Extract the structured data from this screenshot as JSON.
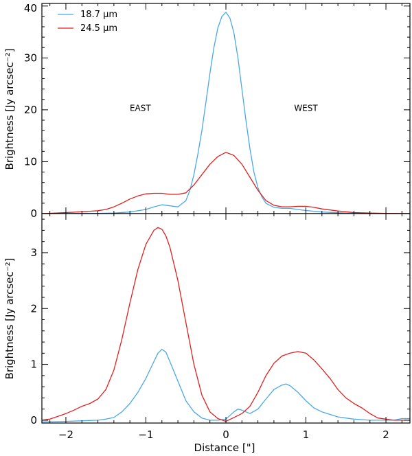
{
  "chart_data": [
    {
      "type": "line",
      "panel": "top",
      "title": "",
      "xlabel": "",
      "ylabel": "Brightness [Jy arcsec⁻²]",
      "xlim": [
        -2.3,
        2.3
      ],
      "ylim": [
        0,
        40.5
      ],
      "xticks": [
        -2,
        -1,
        0,
        1,
        2
      ],
      "yticks": [
        0,
        10,
        20,
        30,
        40
      ],
      "ytick_labels": [
        "0",
        "10",
        "20",
        "30",
        "40"
      ],
      "grid": false,
      "legend_position": "top-left",
      "annotations": [
        {
          "text": "EAST",
          "x": -1.07,
          "y": 19.8
        },
        {
          "text": "WEST",
          "x": 1.0,
          "y": 19.8
        }
      ],
      "series": [
        {
          "name": "18.7 μm",
          "color": "#4aa8e8",
          "x": [
            -2.3,
            -2.0,
            -1.6,
            -1.4,
            -1.2,
            -1.0,
            -0.9,
            -0.8,
            -0.7,
            -0.6,
            -0.5,
            -0.45,
            -0.4,
            -0.35,
            -0.3,
            -0.25,
            -0.2,
            -0.15,
            -0.1,
            -0.05,
            0.0,
            0.05,
            0.1,
            0.15,
            0.2,
            0.25,
            0.3,
            0.35,
            0.4,
            0.45,
            0.5,
            0.6,
            0.7,
            0.8,
            0.9,
            1.0,
            1.2,
            1.5,
            1.8,
            2.0,
            2.3
          ],
          "y": [
            0.0,
            0.02,
            0.05,
            0.1,
            0.3,
            0.8,
            1.3,
            1.7,
            1.5,
            1.3,
            2.5,
            4.5,
            7.5,
            11.5,
            16.0,
            21.5,
            27.0,
            32.0,
            35.8,
            38.0,
            38.8,
            37.7,
            34.8,
            30.0,
            24.0,
            18.0,
            12.5,
            8.0,
            5.0,
            3.2,
            2.0,
            1.2,
            1.0,
            1.0,
            0.8,
            0.6,
            0.3,
            0.1,
            0.05,
            0.02,
            0.0
          ]
        },
        {
          "name": "24.5 μm",
          "color": "#e02020",
          "x": [
            -2.3,
            -2.0,
            -1.8,
            -1.6,
            -1.5,
            -1.4,
            -1.3,
            -1.2,
            -1.1,
            -1.0,
            -0.9,
            -0.8,
            -0.7,
            -0.6,
            -0.5,
            -0.4,
            -0.3,
            -0.2,
            -0.1,
            0.0,
            0.1,
            0.2,
            0.3,
            0.4,
            0.5,
            0.6,
            0.7,
            0.8,
            0.9,
            1.0,
            1.1,
            1.2,
            1.4,
            1.6,
            1.8,
            2.0,
            2.3
          ],
          "y": [
            0.0,
            0.2,
            0.35,
            0.55,
            0.8,
            1.3,
            2.0,
            2.8,
            3.4,
            3.8,
            3.9,
            3.9,
            3.7,
            3.7,
            4.0,
            5.5,
            7.5,
            9.5,
            11.0,
            11.8,
            11.2,
            9.5,
            7.0,
            4.5,
            2.5,
            1.6,
            1.3,
            1.3,
            1.4,
            1.4,
            1.2,
            0.9,
            0.5,
            0.2,
            0.1,
            0.05,
            0.0
          ]
        }
      ]
    },
    {
      "type": "line",
      "panel": "bottom",
      "title": "",
      "xlabel": "Distance [\"]",
      "ylabel": "Brightness [Jy arcsec⁻²]",
      "xlim": [
        -2.3,
        2.3
      ],
      "ylim": [
        -0.05,
        3.7
      ],
      "xticks": [
        -2,
        -1,
        0,
        1,
        2
      ],
      "xtick_labels": [
        "−2",
        "−1",
        "0",
        "1",
        "2"
      ],
      "yticks": [
        0,
        1,
        2,
        3
      ],
      "ytick_labels": [
        "0",
        "1",
        "2",
        "3"
      ],
      "grid": false,
      "series": [
        {
          "name": "18.7 μm",
          "color": "#4aa8e8",
          "x": [
            -2.3,
            -2.0,
            -1.8,
            -1.6,
            -1.5,
            -1.4,
            -1.3,
            -1.2,
            -1.1,
            -1.0,
            -0.9,
            -0.85,
            -0.8,
            -0.75,
            -0.7,
            -0.6,
            -0.5,
            -0.4,
            -0.3,
            -0.2,
            -0.1,
            0.0,
            0.1,
            0.15,
            0.2,
            0.3,
            0.4,
            0.5,
            0.6,
            0.7,
            0.75,
            0.8,
            0.9,
            1.0,
            1.1,
            1.2,
            1.4,
            1.6,
            1.8,
            2.0,
            2.1,
            2.2,
            2.3
          ],
          "y": [
            -0.03,
            -0.02,
            -0.01,
            0.0,
            0.02,
            0.05,
            0.15,
            0.3,
            0.5,
            0.75,
            1.05,
            1.2,
            1.27,
            1.22,
            1.05,
            0.7,
            0.35,
            0.15,
            0.04,
            0.0,
            0.0,
            0.02,
            0.15,
            0.2,
            0.18,
            0.12,
            0.2,
            0.38,
            0.55,
            0.63,
            0.65,
            0.62,
            0.5,
            0.35,
            0.22,
            0.15,
            0.06,
            0.02,
            0.0,
            0.0,
            0.0,
            0.03,
            0.03
          ]
        },
        {
          "name": "24.5 μm",
          "color": "#e02020",
          "x": [
            -2.3,
            -2.2,
            -2.0,
            -1.9,
            -1.8,
            -1.7,
            -1.6,
            -1.5,
            -1.4,
            -1.3,
            -1.2,
            -1.1,
            -1.0,
            -0.9,
            -0.85,
            -0.8,
            -0.75,
            -0.7,
            -0.6,
            -0.5,
            -0.4,
            -0.3,
            -0.2,
            -0.1,
            0.0,
            0.1,
            0.2,
            0.3,
            0.4,
            0.5,
            0.6,
            0.7,
            0.8,
            0.9,
            1.0,
            1.1,
            1.2,
            1.3,
            1.4,
            1.5,
            1.6,
            1.7,
            1.8,
            1.9,
            2.0,
            2.1,
            2.2,
            2.3
          ],
          "y": [
            0.0,
            0.02,
            0.12,
            0.18,
            0.25,
            0.3,
            0.38,
            0.55,
            0.9,
            1.45,
            2.1,
            2.7,
            3.15,
            3.4,
            3.45,
            3.42,
            3.3,
            3.1,
            2.5,
            1.75,
            1.0,
            0.45,
            0.15,
            0.03,
            -0.02,
            0.05,
            0.12,
            0.25,
            0.5,
            0.8,
            1.02,
            1.15,
            1.2,
            1.23,
            1.2,
            1.08,
            0.92,
            0.75,
            0.55,
            0.4,
            0.3,
            0.22,
            0.12,
            0.04,
            0.02,
            0.0,
            0.0,
            0.0
          ]
        }
      ]
    }
  ]
}
